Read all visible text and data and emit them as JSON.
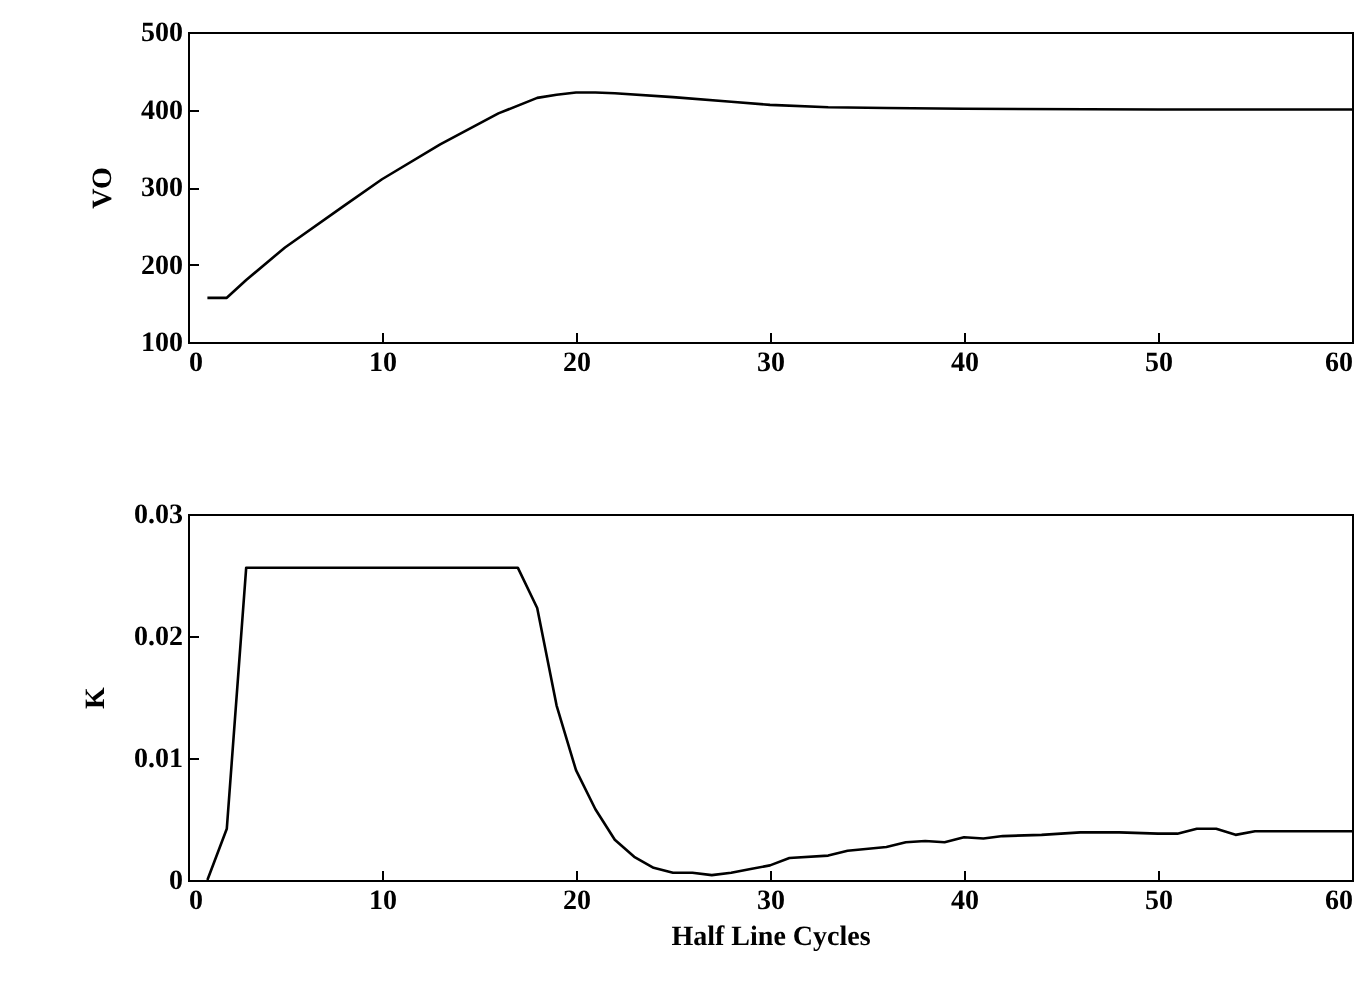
{
  "chart_data": [
    {
      "type": "line",
      "ylabel": "VO",
      "xlim": [
        0,
        60
      ],
      "xticks": [
        0,
        10,
        20,
        30,
        40,
        50,
        60
      ],
      "ylim": [
        100,
        500
      ],
      "yticks": [
        100,
        200,
        300,
        400,
        500
      ],
      "x": [
        1,
        2,
        3,
        5,
        8,
        10,
        13,
        16,
        18,
        19,
        20,
        21,
        22,
        25,
        28,
        30,
        33,
        36,
        40,
        50,
        60
      ],
      "series": [
        {
          "color": "#000000",
          "values": [
            157,
            157,
            180,
            222,
            275,
            310,
            355,
            395,
            415,
            419,
            422,
            422,
            421,
            416,
            410,
            406,
            403,
            402,
            401,
            400,
            400
          ]
        }
      ]
    },
    {
      "type": "line",
      "ylabel": "K",
      "xlabel": "Half Line Cycles",
      "xlim": [
        0,
        60
      ],
      "xticks": [
        0,
        10,
        20,
        30,
        40,
        50,
        60
      ],
      "ylim": [
        0,
        0.03
      ],
      "yticks": [
        0,
        0.01,
        0.02,
        0.03
      ],
      "x": [
        1,
        2,
        3,
        17,
        18,
        19,
        20,
        21,
        22,
        23,
        24,
        25,
        26,
        27,
        28,
        29,
        30,
        31,
        33,
        34,
        36,
        37,
        38,
        39,
        40,
        41,
        42,
        44,
        46,
        48,
        50,
        51,
        52,
        53,
        54,
        55,
        60
      ],
      "series": [
        {
          "color": "#000000",
          "values": [
            0,
            0.0042,
            0.0256,
            0.0256,
            0.0223,
            0.0143,
            0.009,
            0.0058,
            0.0033,
            0.0019,
            0.001,
            0.0006,
            0.0006,
            0.0004,
            0.0006,
            0.0009,
            0.0012,
            0.0018,
            0.002,
            0.0024,
            0.0027,
            0.0031,
            0.0032,
            0.0031,
            0.0035,
            0.0034,
            0.0036,
            0.0037,
            0.0039,
            0.0039,
            0.0038,
            0.0038,
            0.0042,
            0.0042,
            0.0037,
            0.004,
            0.004
          ]
        }
      ]
    }
  ]
}
